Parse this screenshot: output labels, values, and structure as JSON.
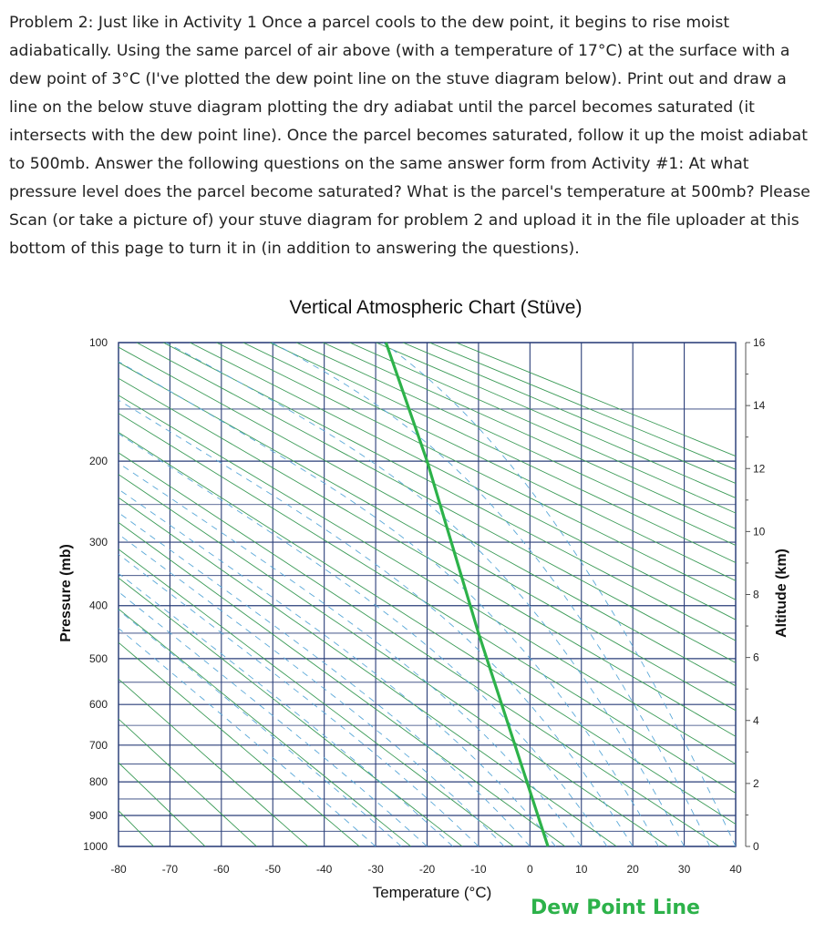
{
  "problem_text": "Problem 2: Just like in Activity 1 Once a parcel cools to the dew point, it begins to rise moist adiabatically. Using the same parcel of air above (with a temperature of 17°C) at the surface with a dew point of 3°C (I've plotted the dew point line on the stuve diagram below). Print out and draw a line on the below stuve diagram plotting the dry adiabat until the parcel becomes saturated (it intersects with the dew point line). Once the parcel becomes saturated, follow it up the moist adiabat to 500mb. Answer the following questions on the same answer form from Activity #1: At what pressure level does the parcel become saturated? What is the parcel's temperature at 500mb? Please Scan (or take a picture of) your stuve diagram for problem 2 and upload it in the file uploader at this bottom of this page to turn it in (in addition to answering the questions).",
  "chart_data": {
    "type": "line",
    "title": "Vertical Atmospheric Chart (Stüve)",
    "xlabel": "Temperature (°C)",
    "ylabel": "Pressure (mb)",
    "y2label": "Altitude (km)",
    "xlim": [
      -80,
      40
    ],
    "x_ticks": [
      "-80",
      "-70",
      "-60",
      "-50",
      "-40",
      "-30",
      "-20",
      "-10",
      "0",
      "10",
      "20",
      "30",
      "40"
    ],
    "pressure_ticks": [
      "100",
      "200",
      "300",
      "400",
      "500",
      "600",
      "700",
      "800",
      "900",
      "1000"
    ],
    "altitude_ticks": [
      "16",
      "14",
      "12",
      "10",
      "8",
      "6",
      "4",
      "2",
      "0"
    ],
    "grid": true,
    "series": [
      {
        "name": "Dew Point Line",
        "color": "#2db24a",
        "points": [
          {
            "temperature": 3.5,
            "pressure": 1000
          },
          {
            "temperature": -10,
            "pressure": 450
          },
          {
            "temperature": -20,
            "pressure": 200
          },
          {
            "temperature": -28,
            "pressure": 100
          }
        ]
      }
    ],
    "annotation": "Dew Point Line"
  },
  "colors": {
    "grid": "#2a3e78",
    "dry_adiabat": "#3a9a56",
    "moist_adiabat": "#5aa8d8",
    "dew_point": "#2db24a"
  }
}
